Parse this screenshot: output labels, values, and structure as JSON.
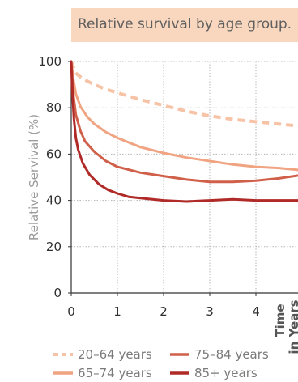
{
  "chart_data": {
    "type": "line",
    "title": "Relative survival by age group.",
    "ylabel": "Relative Servival (%)",
    "xlabel": [
      "Time",
      "in Years"
    ],
    "xlim": [
      0,
      5
    ],
    "ylim": [
      0,
      100
    ],
    "xticks": [
      "0",
      "1",
      "2",
      "3",
      "4"
    ],
    "yticks": [
      "0",
      "20",
      "40",
      "60",
      "80",
      "100"
    ],
    "grid": true,
    "legend_position": "bottom",
    "series": [
      {
        "name": "20–64 years",
        "color": "#f7c3a6",
        "style": "dashed",
        "points": [
          [
            0,
            100
          ],
          [
            0.1,
            95
          ],
          [
            0.25,
            92.5
          ],
          [
            0.5,
            90
          ],
          [
            0.75,
            88
          ],
          [
            1,
            86.5
          ],
          [
            1.5,
            83.5
          ],
          [
            2,
            81
          ],
          [
            2.5,
            78.5
          ],
          [
            3,
            76.5
          ],
          [
            3.5,
            75
          ],
          [
            4,
            74
          ],
          [
            4.5,
            73
          ],
          [
            5,
            72
          ]
        ]
      },
      {
        "name": "65–74 years",
        "color": "#f0a482",
        "style": "solid",
        "points": [
          [
            0,
            100
          ],
          [
            0.05,
            92
          ],
          [
            0.1,
            86
          ],
          [
            0.2,
            80.5
          ],
          [
            0.35,
            76
          ],
          [
            0.5,
            73
          ],
          [
            0.75,
            69.5
          ],
          [
            1,
            67
          ],
          [
            1.5,
            63
          ],
          [
            2,
            60.5
          ],
          [
            2.5,
            58.5
          ],
          [
            3,
            57
          ],
          [
            3.5,
            55.5
          ],
          [
            4,
            54.5
          ],
          [
            4.5,
            54
          ],
          [
            5,
            53
          ]
        ]
      },
      {
        "name": "75–84 years",
        "color": "#d0604a",
        "style": "solid",
        "points": [
          [
            0,
            100
          ],
          [
            0.05,
            85
          ],
          [
            0.1,
            77
          ],
          [
            0.2,
            70
          ],
          [
            0.3,
            65.5
          ],
          [
            0.5,
            61
          ],
          [
            0.75,
            57
          ],
          [
            1,
            54.5
          ],
          [
            1.5,
            52
          ],
          [
            2,
            50.5
          ],
          [
            2.5,
            49
          ],
          [
            3,
            48
          ],
          [
            3.5,
            48
          ],
          [
            4,
            48.5
          ],
          [
            4.5,
            49.5
          ],
          [
            5,
            51
          ]
        ]
      },
      {
        "name": "85+ years",
        "color": "#b02a28",
        "style": "solid",
        "points": [
          [
            0,
            100
          ],
          [
            0.03,
            85
          ],
          [
            0.06,
            75
          ],
          [
            0.1,
            67
          ],
          [
            0.15,
            62
          ],
          [
            0.25,
            56
          ],
          [
            0.4,
            51
          ],
          [
            0.6,
            47
          ],
          [
            0.8,
            44.5
          ],
          [
            1,
            43
          ],
          [
            1.25,
            41.5
          ],
          [
            1.5,
            41
          ],
          [
            2,
            40
          ],
          [
            2.5,
            39.5
          ],
          [
            3,
            40
          ],
          [
            3.5,
            40.5
          ],
          [
            4,
            40
          ],
          [
            4.5,
            40
          ],
          [
            5,
            40
          ]
        ]
      }
    ]
  }
}
